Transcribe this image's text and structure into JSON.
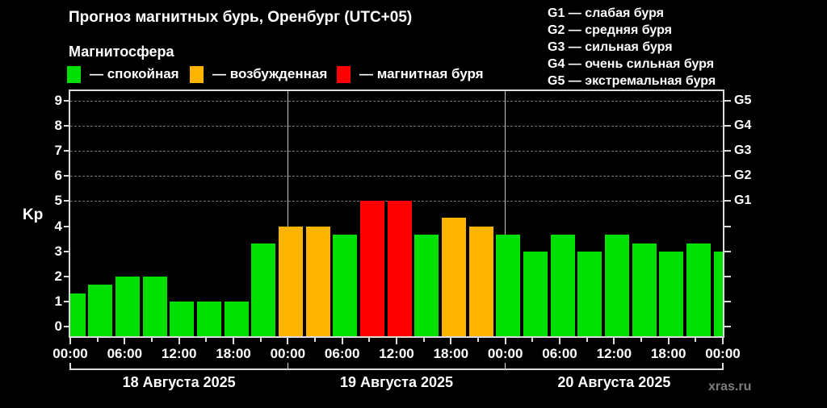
{
  "header": {
    "title": "Прогноз магнитных бурь, Оренбург (UTC+05)",
    "subtitle": "Магнитосфера",
    "legend": [
      {
        "state": "quiet",
        "color": "#00E000",
        "label": "— спокойная"
      },
      {
        "state": "excited",
        "color": "#FFB400",
        "label": "— возбужденная"
      },
      {
        "state": "storm",
        "color": "#FF0000",
        "label": "— магнитная буря"
      }
    ],
    "g_scale": [
      "G1 — слабая буря",
      "G2 — средняя буря",
      "G3 — сильная буря",
      "G4 — очень сильная буря",
      "G5 — экстремальная буря"
    ]
  },
  "watermark": "xras.ru",
  "chart_data": {
    "type": "bar",
    "title": "Прогноз магнитных бурь, Оренбург (UTC+05)",
    "ylabel": "Kp",
    "ylim": [
      0,
      9
    ],
    "y_ticks": [
      0,
      1,
      2,
      3,
      4,
      5,
      6,
      7,
      8,
      9
    ],
    "grid": "horizontal dashed lines at Kp 5-9 (storm levels)",
    "gridlines_at_kp": [
      5,
      6,
      7,
      8,
      9
    ],
    "right_axis_ticks": [
      {
        "kp": 5,
        "label": "G1"
      },
      {
        "kp": 6,
        "label": "G2"
      },
      {
        "kp": 7,
        "label": "G3"
      },
      {
        "kp": 8,
        "label": "G4"
      },
      {
        "kp": 9,
        "label": "G5"
      }
    ],
    "x_range_hours": [
      0,
      72
    ],
    "bars": [
      {
        "hour": 0,
        "kp": 1.33,
        "state": "quiet"
      },
      {
        "hour": 3,
        "kp": 1.67,
        "state": "quiet"
      },
      {
        "hour": 6,
        "kp": 2.0,
        "state": "quiet"
      },
      {
        "hour": 9,
        "kp": 2.0,
        "state": "quiet"
      },
      {
        "hour": 12,
        "kp": 1.0,
        "state": "quiet"
      },
      {
        "hour": 15,
        "kp": 1.0,
        "state": "quiet"
      },
      {
        "hour": 18,
        "kp": 1.0,
        "state": "quiet"
      },
      {
        "hour": 21,
        "kp": 3.33,
        "state": "quiet"
      },
      {
        "hour": 24,
        "kp": 4.0,
        "state": "excited"
      },
      {
        "hour": 27,
        "kp": 4.0,
        "state": "excited"
      },
      {
        "hour": 30,
        "kp": 3.67,
        "state": "quiet"
      },
      {
        "hour": 33,
        "kp": 5.0,
        "state": "storm"
      },
      {
        "hour": 36,
        "kp": 5.0,
        "state": "storm"
      },
      {
        "hour": 39,
        "kp": 3.67,
        "state": "quiet"
      },
      {
        "hour": 42,
        "kp": 4.33,
        "state": "excited"
      },
      {
        "hour": 45,
        "kp": 4.0,
        "state": "excited"
      },
      {
        "hour": 48,
        "kp": 3.67,
        "state": "quiet"
      },
      {
        "hour": 51,
        "kp": 3.0,
        "state": "quiet"
      },
      {
        "hour": 54,
        "kp": 3.67,
        "state": "quiet"
      },
      {
        "hour": 57,
        "kp": 3.0,
        "state": "quiet"
      },
      {
        "hour": 60,
        "kp": 3.67,
        "state": "quiet"
      },
      {
        "hour": 63,
        "kp": 3.33,
        "state": "quiet"
      },
      {
        "hour": 66,
        "kp": 3.0,
        "state": "quiet"
      },
      {
        "hour": 69,
        "kp": 3.33,
        "state": "quiet"
      },
      {
        "hour": 72,
        "kp": 3.0,
        "state": "quiet"
      }
    ],
    "state_colors": {
      "quiet": "#00E000",
      "excited": "#FFB400",
      "storm": "#FF0000"
    },
    "x_major_ticks": [
      {
        "hour": 0,
        "label": "00:00"
      },
      {
        "hour": 6,
        "label": "06:00"
      },
      {
        "hour": 12,
        "label": "12:00"
      },
      {
        "hour": 18,
        "label": "18:00"
      },
      {
        "hour": 24,
        "label": "00:00"
      },
      {
        "hour": 30,
        "label": "06:00"
      },
      {
        "hour": 36,
        "label": "12:00"
      },
      {
        "hour": 42,
        "label": "18:00"
      },
      {
        "hour": 48,
        "label": "00:00"
      },
      {
        "hour": 54,
        "label": "06:00"
      },
      {
        "hour": 60,
        "label": "12:00"
      },
      {
        "hour": 66,
        "label": "18:00"
      },
      {
        "hour": 72,
        "label": "00:00"
      }
    ],
    "x_minor_tick_hours": [
      3,
      9,
      15,
      21,
      27,
      33,
      39,
      45,
      51,
      57,
      63,
      69
    ],
    "day_separators_hours": [
      24,
      48
    ],
    "days": [
      {
        "label": "18 Августа 2025",
        "start_hour": 0,
        "end_hour": 24
      },
      {
        "label": "19 Августа 2025",
        "start_hour": 24,
        "end_hour": 48
      },
      {
        "label": "20 Августа 2025",
        "start_hour": 48,
        "end_hour": 72
      }
    ]
  }
}
